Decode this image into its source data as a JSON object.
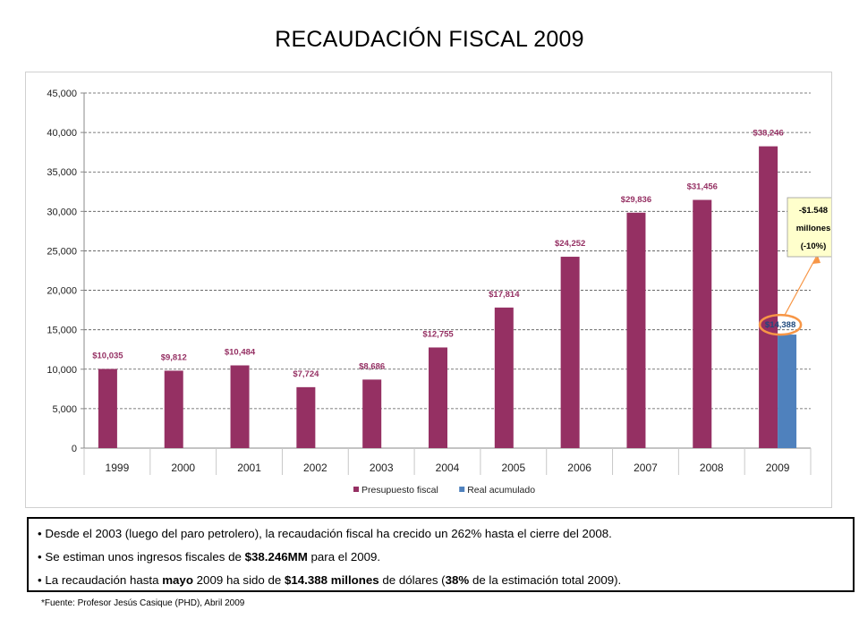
{
  "page_title": "RECAUDACIÓN FISCAL 2009",
  "chart_data": {
    "type": "bar",
    "categories": [
      "1999",
      "2000",
      "2001",
      "2002",
      "2003",
      "2004",
      "2005",
      "2006",
      "2007",
      "2008",
      "2009"
    ],
    "series": [
      {
        "name": "Presupuesto fiscal",
        "color": "#953063",
        "values": [
          10035,
          9812,
          10484,
          7724,
          8686,
          12755,
          17814,
          24252,
          29836,
          31456,
          38246
        ],
        "labels": [
          "$10,035",
          "$9,812",
          "$10,484",
          "$7,724",
          "$8,686",
          "$12,755",
          "$17,814",
          "$24,252",
          "$29,836",
          "$31,456",
          "$38,246"
        ]
      },
      {
        "name": "Real acumulado",
        "color": "#4f81bd",
        "values": [
          null,
          null,
          null,
          null,
          null,
          null,
          null,
          null,
          null,
          null,
          14388
        ],
        "labels": [
          "",
          "",
          "",
          "",
          "",
          "",
          "",
          "",
          "",
          "",
          "$14,388"
        ]
      }
    ],
    "ylim": [
      0,
      45000
    ],
    "ytick_labels": [
      "0",
      "5,000",
      "10,000",
      "15,000",
      "20,000",
      "25,000",
      "30,000",
      "35,000",
      "40,000",
      "45,000"
    ],
    "grid": true,
    "legend_position": "bottom",
    "annotation": {
      "lines": [
        "-$1.548",
        "millones",
        "(-10%)"
      ],
      "target": "2009 Real acumulado"
    },
    "annotation_color": "#f79646"
  },
  "bullets": [
    {
      "parts": [
        {
          "text": "Desde el 2003 (luego del paro petrolero), la recaudación fiscal ha crecido un 262% hasta el cierre del 2008.",
          "bold": false
        }
      ]
    },
    {
      "parts": [
        {
          "text": "Se estiman unos ingresos fiscales de ",
          "bold": false
        },
        {
          "text": "$38.246MM",
          "bold": true
        },
        {
          "text": " para el 2009.",
          "bold": false
        }
      ]
    },
    {
      "parts": [
        {
          "text": "La recaudación hasta ",
          "bold": false
        },
        {
          "text": "mayo",
          "bold": true
        },
        {
          "text": " 2009 ha sido de ",
          "bold": false
        },
        {
          "text": "$14.388 millones",
          "bold": true
        },
        {
          "text": " de dólares (",
          "bold": false
        },
        {
          "text": "38%",
          "bold": true
        },
        {
          "text": " de la estimación total 2009).",
          "bold": false
        }
      ]
    }
  ],
  "bullet_symbol": "•",
  "footnote": "*Fuente: Profesor Jesús Casique (PHD), Abril 2009"
}
